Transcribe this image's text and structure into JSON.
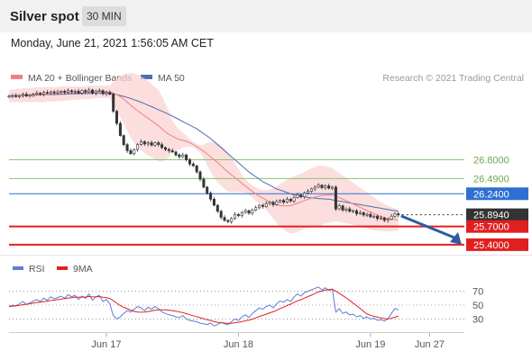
{
  "header": {
    "title": "Silver spot",
    "interval": "30 MIN"
  },
  "datetime": "Monday, June 21, 2021 1:56:05 AM CET",
  "copyright": "Research © 2021 Trading Central",
  "colors": {
    "bollinger_ma20": "#f08080",
    "bollinger_band": "#fbd3d3",
    "ma50": "#4a6fb5",
    "resistance": "#8cc66a",
    "pivot": "#2f6fd1",
    "support": "#e02020",
    "rsi": "#5b7fd6",
    "rsi_ma": "#e02020",
    "candle_up": "#ffffff",
    "candle_down": "#333333",
    "current_price": "#333333"
  },
  "chart_data": [
    {
      "type": "candlestick",
      "legend": [
        {
          "label": "MA 20 + Bollinger Bands",
          "color": "#f08080"
        },
        {
          "label": "MA 50",
          "color": "#4a6fb5"
        }
      ],
      "ylim": [
        25.25,
        27.95
      ],
      "x_ticks": [
        {
          "label": "Jun 17",
          "x": 28
        },
        {
          "label": "Jun 18",
          "x": 66
        },
        {
          "label": "Jun 19",
          "x": 104
        },
        {
          "label": "Jun 27",
          "x": 121
        }
      ],
      "x_range": [
        0,
        131
      ],
      "levels": [
        {
          "label": "26.8000",
          "value": 26.8,
          "kind": "resistance",
          "color": "#8cc66a",
          "tag_bg": ""
        },
        {
          "label": "26.4900",
          "value": 26.49,
          "kind": "resistance",
          "color": "#8cc66a",
          "tag_bg": ""
        },
        {
          "label": "26.2400",
          "value": 26.24,
          "kind": "pivot",
          "color": "#2f6fd1",
          "tag_bg": "#2f6fd1"
        },
        {
          "label": "25.8940",
          "value": 25.894,
          "kind": "current",
          "color": "#333333",
          "tag_bg": "#333333"
        },
        {
          "label": "25.7000",
          "value": 25.7,
          "kind": "support",
          "color": "#e02020",
          "tag_bg": "#e02020"
        },
        {
          "label": "25.4000",
          "value": 25.4,
          "kind": "support",
          "color": "#e02020",
          "tag_bg": "#e02020"
        }
      ],
      "close": [
        27.85,
        27.86,
        27.84,
        27.86,
        27.88,
        27.85,
        27.87,
        27.88,
        27.9,
        27.88,
        27.91,
        27.9,
        27.92,
        27.9,
        27.92,
        27.93,
        27.91,
        27.94,
        27.92,
        27.93,
        27.9,
        27.94,
        27.92,
        27.95,
        27.9,
        27.93,
        27.94,
        27.89,
        27.91,
        27.88,
        27.6,
        27.4,
        27.2,
        27.05,
        26.95,
        26.9,
        26.97,
        27.05,
        27.1,
        27.06,
        27.08,
        27.04,
        27.08,
        27.05,
        27.0,
        26.97,
        26.95,
        26.93,
        26.88,
        26.85,
        26.88,
        26.8,
        26.73,
        26.7,
        26.6,
        26.48,
        26.35,
        26.25,
        26.15,
        26.05,
        25.95,
        25.85,
        25.8,
        25.78,
        25.83,
        25.9,
        25.88,
        25.93,
        25.96,
        25.92,
        25.97,
        26.01,
        26.05,
        26.03,
        26.08,
        26.1,
        26.06,
        26.11,
        26.13,
        26.1,
        26.15,
        26.12,
        26.18,
        26.22,
        26.19,
        26.25,
        26.28,
        26.32,
        26.35,
        26.38,
        26.34,
        26.37,
        26.33,
        26.35,
        25.99,
        26.04,
        25.97,
        25.99,
        25.95,
        25.96,
        25.91,
        25.93,
        25.89,
        25.9,
        25.86,
        25.87,
        25.83,
        25.84,
        25.8,
        25.82,
        25.87,
        25.91,
        25.89
      ],
      "ma20": [
        27.85,
        27.856,
        27.858,
        27.86,
        27.864,
        27.865,
        27.867,
        27.869,
        27.872,
        27.872,
        27.876,
        27.878,
        27.882,
        27.882,
        27.886,
        27.89,
        27.892,
        27.898,
        27.9,
        27.902,
        27.902,
        27.908,
        27.908,
        27.914,
        27.914,
        27.918,
        27.922,
        27.918,
        27.92,
        27.916,
        27.9,
        27.874,
        27.842,
        27.8,
        27.748,
        27.7,
        27.652,
        27.607,
        27.566,
        27.526,
        27.485,
        27.443,
        27.402,
        27.36,
        27.31,
        27.26,
        27.22,
        27.188,
        27.16,
        27.133,
        27.124,
        27.104,
        27.08,
        27.052,
        27.017,
        26.978,
        26.938,
        26.896,
        26.85,
        26.8,
        26.755,
        26.703,
        26.649,
        26.598,
        26.55,
        26.51,
        26.46,
        26.41,
        26.368,
        26.322,
        26.278,
        26.236,
        26.2,
        26.168,
        26.135,
        26.105,
        26.08,
        26.06,
        26.048,
        26.04,
        26.04,
        26.045,
        26.062,
        26.082,
        26.104,
        26.128,
        26.148,
        26.166,
        26.184,
        26.2,
        26.21,
        26.218,
        26.22,
        26.218,
        26.2,
        26.178,
        26.152,
        26.126,
        26.1,
        26.074,
        26.045,
        26.019,
        25.99,
        25.962,
        25.935,
        25.91,
        25.885,
        25.865,
        25.845,
        25.83,
        25.82,
        25.815,
        25.81
      ],
      "bb_upper": [
        27.95,
        27.96,
        27.97,
        27.97,
        27.98,
        27.98,
        27.98,
        27.99,
        27.99,
        27.99,
        28.0,
        28.0,
        28.0,
        28.0,
        28.0,
        28.01,
        28.01,
        28.01,
        28.01,
        28.01,
        28.01,
        28.01,
        28.01,
        28.02,
        28.02,
        28.02,
        28.02,
        28.02,
        28.02,
        28.02,
        28.08,
        28.14,
        28.18,
        28.21,
        28.22,
        28.23,
        28.22,
        28.2,
        28.17,
        28.14,
        28.1,
        28.05,
        28.0,
        27.95,
        27.85,
        27.72,
        27.6,
        27.45,
        27.36,
        27.3,
        27.25,
        27.2,
        27.14,
        27.1,
        27.06,
        27.04,
        27.05,
        27.08,
        27.1,
        27.1,
        27.08,
        27.04,
        26.98,
        26.92,
        26.84,
        26.75,
        26.65,
        26.55,
        26.48,
        26.42,
        26.38,
        26.35,
        26.32,
        26.3,
        26.3,
        26.31,
        26.33,
        26.36,
        26.4,
        26.43,
        26.47,
        26.5,
        26.53,
        26.55,
        26.57,
        26.6,
        26.63,
        26.66,
        26.68,
        26.7,
        26.7,
        26.69,
        26.68,
        26.66,
        26.62,
        26.58,
        26.54,
        26.5,
        26.46,
        26.42,
        26.38,
        26.34,
        26.3,
        26.26,
        26.22,
        26.18,
        26.14,
        26.1,
        26.07,
        26.04,
        26.02,
        26.0,
        25.99
      ],
      "bb_lower": [
        27.75,
        27.75,
        27.75,
        27.75,
        27.75,
        27.75,
        27.75,
        27.75,
        27.75,
        27.75,
        27.75,
        27.76,
        27.76,
        27.76,
        27.77,
        27.77,
        27.77,
        27.78,
        27.78,
        27.79,
        27.79,
        27.8,
        27.8,
        27.8,
        27.81,
        27.81,
        27.82,
        27.82,
        27.82,
        27.81,
        27.72,
        27.61,
        27.5,
        27.39,
        27.28,
        27.17,
        27.08,
        27.01,
        26.96,
        26.91,
        26.87,
        26.84,
        26.8,
        26.77,
        26.77,
        26.8,
        26.84,
        26.93,
        26.96,
        26.97,
        27.0,
        27.01,
        27.02,
        27.0,
        26.97,
        26.92,
        26.82,
        26.71,
        26.6,
        26.5,
        26.43,
        26.37,
        26.32,
        26.28,
        26.26,
        26.27,
        26.27,
        26.27,
        26.26,
        26.22,
        26.18,
        26.12,
        26.08,
        26.04,
        25.97,
        25.9,
        25.83,
        25.76,
        25.7,
        25.65,
        25.61,
        25.59,
        25.59,
        25.61,
        25.64,
        25.66,
        25.67,
        25.67,
        25.69,
        25.7,
        25.72,
        25.75,
        25.76,
        25.78,
        25.78,
        25.78,
        25.76,
        25.75,
        25.74,
        25.73,
        25.71,
        25.7,
        25.68,
        25.66,
        25.65,
        25.64,
        25.63,
        25.63,
        25.62,
        25.62,
        25.62,
        25.63,
        25.63
      ],
      "ma50": [
        27.85,
        27.852,
        27.854,
        27.856,
        27.858,
        27.86,
        27.862,
        27.864,
        27.866,
        27.868,
        27.87,
        27.872,
        27.874,
        27.876,
        27.878,
        27.88,
        27.882,
        27.884,
        27.886,
        27.888,
        27.889,
        27.89,
        27.891,
        27.892,
        27.893,
        27.894,
        27.894,
        27.894,
        27.893,
        27.892,
        27.885,
        27.875,
        27.86,
        27.845,
        27.828,
        27.81,
        27.79,
        27.77,
        27.748,
        27.725,
        27.7,
        27.675,
        27.65,
        27.625,
        27.6,
        27.575,
        27.548,
        27.52,
        27.49,
        27.46,
        27.43,
        27.4,
        27.37,
        27.34,
        27.31,
        27.27,
        27.23,
        27.19,
        27.15,
        27.1,
        27.05,
        27.0,
        26.95,
        26.9,
        26.85,
        26.8,
        26.75,
        26.7,
        26.65,
        26.6,
        26.56,
        26.52,
        26.48,
        26.44,
        26.41,
        26.38,
        26.35,
        26.32,
        26.3,
        26.28,
        26.26,
        26.24,
        26.22,
        26.21,
        26.2,
        26.19,
        26.18,
        26.17,
        26.17,
        26.16,
        26.16,
        26.15,
        26.15,
        26.14,
        26.13,
        26.12,
        26.11,
        26.1,
        26.09,
        26.08,
        26.07,
        26.06,
        26.05,
        26.04,
        26.03,
        26.02,
        26.01,
        26.0,
        25.99,
        25.98,
        25.97,
        25.96,
        25.95
      ]
    },
    {
      "type": "line",
      "legend": [
        {
          "label": "RSI",
          "color": "#5b7fd6"
        },
        {
          "label": "9MA",
          "color": "#e02020"
        }
      ],
      "ylim": [
        15,
        85
      ],
      "y_ticks": [
        70,
        50,
        30
      ],
      "rsi": [
        48,
        50,
        49,
        52,
        55,
        51,
        53,
        56,
        58,
        55,
        60,
        57,
        62,
        59,
        61,
        63,
        60,
        65,
        62,
        64,
        58,
        63,
        60,
        66,
        57,
        62,
        64,
        55,
        58,
        52,
        35,
        30,
        33,
        38,
        42,
        40,
        44,
        48,
        46,
        42,
        47,
        44,
        48,
        45,
        40,
        38,
        36,
        35,
        33,
        32,
        35,
        30,
        28,
        27,
        26,
        24,
        23,
        22,
        24,
        20,
        22,
        25,
        23,
        22,
        26,
        30,
        28,
        33,
        36,
        32,
        38,
        42,
        46,
        44,
        48,
        50,
        46,
        52,
        56,
        54,
        58,
        55,
        62,
        66,
        63,
        68,
        70,
        72,
        74,
        76,
        72,
        75,
        71,
        73,
        40,
        45,
        38,
        40,
        36,
        37,
        33,
        35,
        31,
        33,
        30,
        31,
        28,
        29,
        27,
        30,
        38,
        45,
        43
      ],
      "rsi_ma": [
        48,
        48.5,
        49,
        49.8,
        50.8,
        51.2,
        51.9,
        52.8,
        53.8,
        54.1,
        55,
        55.6,
        56.6,
        57.1,
        57.9,
        58.7,
        59.2,
        60.2,
        60.8,
        61.6,
        61.3,
        61.7,
        61.5,
        62.4,
        61.8,
        61.9,
        62.2,
        61.3,
        60.8,
        59.6,
        56.4,
        52.7,
        49.4,
        46.9,
        44.8,
        42.8,
        40.9,
        39.9,
        39.7,
        39.9,
        40.7,
        41.7,
        42.6,
        43.1,
        43.2,
        43.1,
        42.6,
        42.1,
        41.3,
        40.2,
        39.2,
        37.7,
        36.1,
        34.7,
        33.4,
        31.9,
        30.4,
        28.9,
        27.8,
        26.3,
        25.2,
        24.6,
        24.1,
        23.8,
        23.8,
        24.6,
        25.2,
        26.1,
        27.5,
        28.4,
        29.8,
        31.6,
        33.7,
        35.2,
        36.9,
        38.8,
        40.4,
        42.6,
        45.1,
        47,
        49.3,
        51.4,
        53.8,
        56.2,
        57.8,
        60.1,
        62.3,
        64.4,
        66.6,
        68.9,
        70.2,
        71.6,
        72.4,
        73,
        69.8,
        67.1,
        63.8,
        60.5,
        56.7,
        52.9,
        49.2,
        45.1,
        40.9,
        37.2,
        35.3,
        33.8,
        32.6,
        31.5,
        30.6,
        30,
        31,
        32.6,
        33.9
      ]
    }
  ]
}
